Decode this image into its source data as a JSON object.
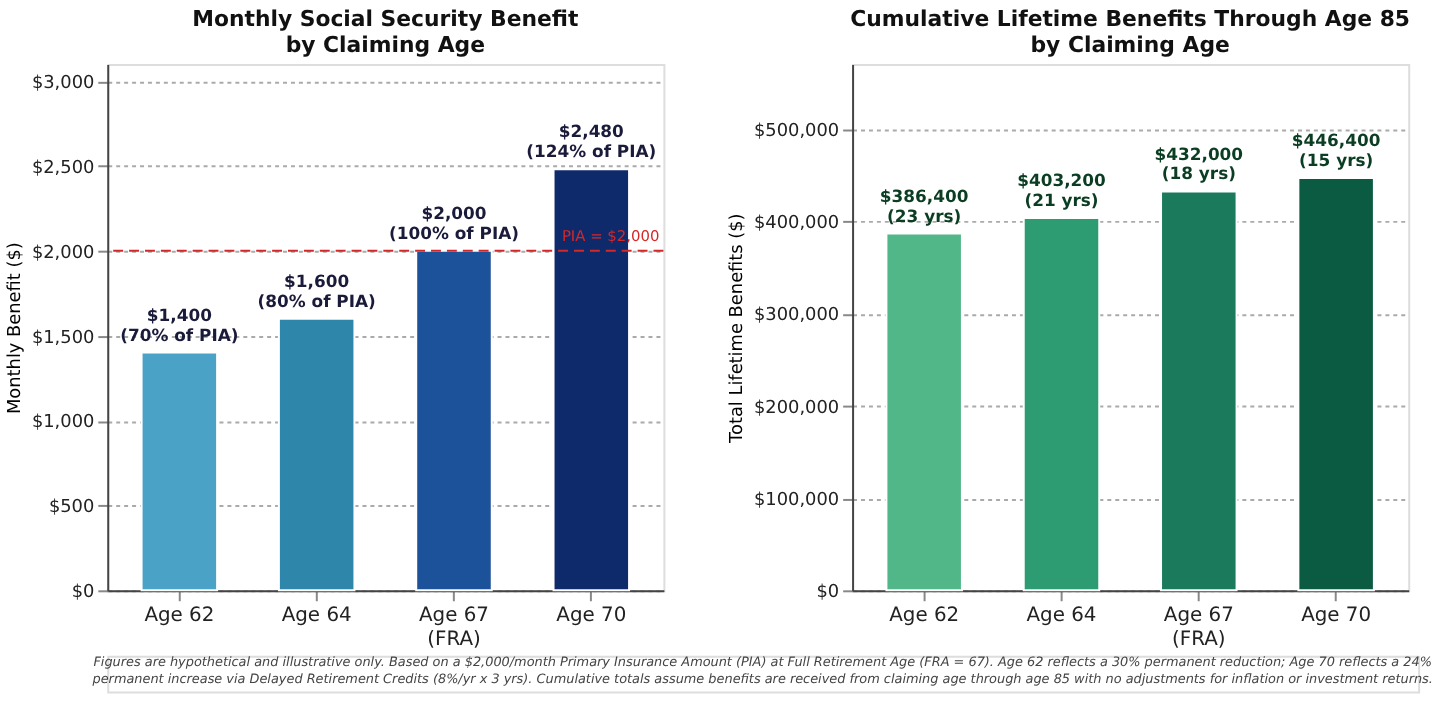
{
  "chart_data": [
    {
      "type": "bar",
      "title": "Monthly Social Security Benefit\nby Claiming Age",
      "ylabel": "Monthly Benefit ($)",
      "categories": [
        "Age 62",
        "Age 64",
        "Age 67\n(FRA)",
        "Age 70"
      ],
      "values": [
        1400,
        1600,
        2000,
        2480
      ],
      "colors": [
        "#4aa3c6",
        "#2e86ab",
        "#1c5299",
        "#0f2a6b"
      ],
      "value_labels": [
        "$1,400\n(70% of PIA)",
        "$1,600\n(80% of PIA)",
        "$2,000\n(100% of PIA)",
        "$2,480\n(124% of PIA)"
      ],
      "ylim": [
        0,
        3100
      ],
      "yticks": [
        {
          "value": 0,
          "label": "$0"
        },
        {
          "value": 500,
          "label": "$500"
        },
        {
          "value": 1000,
          "label": "$1,000"
        },
        {
          "value": 1500,
          "label": "$1,500"
        },
        {
          "value": 2000,
          "label": "$2,000"
        },
        {
          "value": 2500,
          "label": "$2,500"
        },
        {
          "value": 3000,
          "label": "$3,000"
        }
      ],
      "ref_lines": [
        {
          "axis": "y",
          "value": 2000,
          "label": "PIA = $2,000",
          "color": "#d62728",
          "line_style": "dashed"
        }
      ],
      "grid": "y",
      "annotations": [
        "Figures are hypothetical and illustrative only. Based on a $2,000/month Primary Insurance Amount (PIA) at Full Retirement Age (FRA = 67). Age 62 reflects a 30% permanent reduction; Age 70 reflects a 24% permanent increase via Delayed Retirement Credits (8%/yr x 3 yrs). Cumulative totals assume benefits are received from claiming age through age 85 with no adjustments for inflation or investment returns."
      ]
    },
    {
      "type": "bar",
      "title": "Cumulative Lifetime Benefits Through Age 85\nby Claiming Age",
      "ylabel": "Total Lifetime Benefits ($)",
      "categories": [
        "Age 62",
        "Age 64",
        "Age 67\n(FRA)",
        "Age 70"
      ],
      "values": [
        386400,
        403200,
        432000,
        446400
      ],
      "colors": [
        "#52b788",
        "#2d9c72",
        "#1b7a5c",
        "#0b5a42"
      ],
      "value_labels": [
        "$386,400\n(23 yrs)",
        "$403,200\n(21 yrs)",
        "$432,000\n(18 yrs)",
        "$446,400\n(15 yrs)"
      ],
      "ylim": [
        0,
        570000
      ],
      "yticks": [
        {
          "value": 0,
          "label": "$0"
        },
        {
          "value": 100000,
          "label": "$100,000"
        },
        {
          "value": 200000,
          "label": "$200,000"
        },
        {
          "value": 300000,
          "label": "$300,000"
        },
        {
          "value": 400000,
          "label": "$400,000"
        },
        {
          "value": 500000,
          "label": "$500,000"
        }
      ],
      "grid": "y"
    }
  ]
}
